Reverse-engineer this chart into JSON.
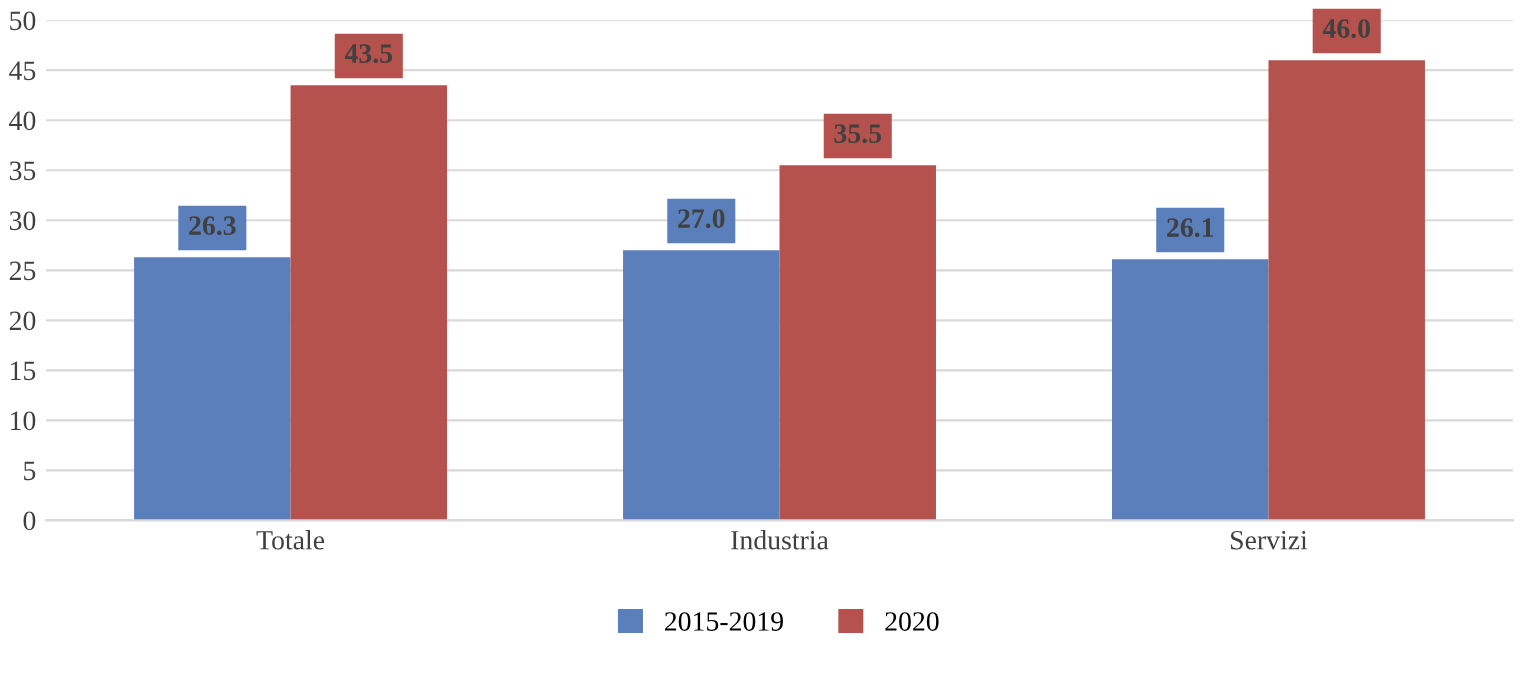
{
  "chart_data": {
    "type": "bar",
    "categories": [
      "Totale",
      "Industria",
      "Servizi"
    ],
    "series": [
      {
        "name": "2015-2019",
        "color": "#5a7fbb",
        "values": [
          26.3,
          27.0,
          26.1
        ],
        "value_labels": [
          "26.3",
          "27.0",
          "26.1"
        ]
      },
      {
        "name": "2020",
        "color": "#b5524d",
        "values": [
          43.5,
          35.5,
          46.0
        ],
        "value_labels": [
          "43.5",
          "35.5",
          "46.0"
        ]
      }
    ],
    "ylim": [
      0,
      50
    ],
    "yticks": [
      0,
      5,
      10,
      15,
      20,
      25,
      30,
      35,
      40,
      45,
      50
    ],
    "grid": "y",
    "legend": "bottom"
  }
}
